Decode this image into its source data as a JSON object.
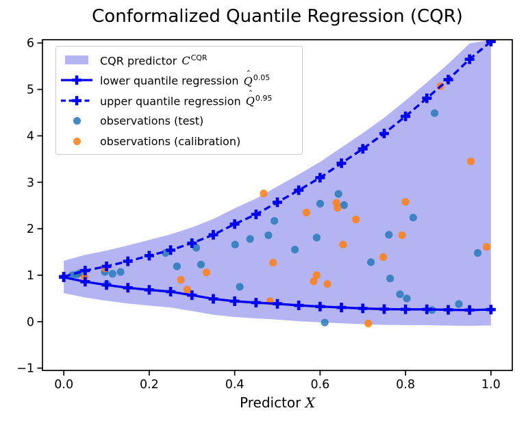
{
  "figure": {
    "title": "Conformalized Quantile Regression (CQR)",
    "xlabel_text": "Predictor ",
    "xlabel_var": "X"
  },
  "colors": {
    "curve_blue": "#0000ee",
    "band": "#b4b4f2",
    "test_dot": "#1f77b4",
    "calibration_dot": "#ff7f0e",
    "spine": "#000000",
    "legend_border": "#cccccc"
  },
  "chart_data": {
    "type": "line+scatter+band",
    "title": "Conformalized Quantile Regression (CQR)",
    "xlabel": "Predictor X",
    "ylabel": "",
    "xlim": [
      -0.05,
      1.05
    ],
    "ylim": [
      -1.05,
      6.07
    ],
    "grid": false,
    "legend_position": "upper left",
    "x_ticks": {
      "values": [
        0.0,
        0.2,
        0.4,
        0.6,
        0.8,
        1.0
      ],
      "labels": [
        "0.0",
        "0.2",
        "0.4",
        "0.6",
        "0.8",
        "1.0"
      ]
    },
    "y_ticks": {
      "values": [
        -1,
        0,
        1,
        2,
        3,
        4,
        5,
        6
      ],
      "labels": [
        "−1",
        "0",
        "1",
        "2",
        "3",
        "4",
        "5",
        "6"
      ]
    },
    "curve_x": [
      0.0,
      0.05,
      0.1,
      0.15,
      0.2,
      0.25,
      0.3,
      0.35,
      0.4,
      0.45,
      0.5,
      0.55,
      0.6,
      0.65,
      0.7,
      0.75,
      0.8,
      0.85,
      0.9,
      0.95,
      1.0
    ],
    "band": {
      "name": "CQR predictor C^CQR",
      "offset": 0.34
    },
    "series": [
      {
        "name": "lower quantile regression Q^0.05",
        "type": "line",
        "style": "solid",
        "values": [
          0.955,
          0.86,
          0.79,
          0.73,
          0.685,
          0.645,
          0.57,
          0.49,
          0.44,
          0.41,
          0.385,
          0.35,
          0.325,
          0.305,
          0.285,
          0.27,
          0.265,
          0.265,
          0.255,
          0.25,
          0.26
        ]
      },
      {
        "name": "upper quantile regression Q^0.95",
        "type": "line",
        "style": "dashed",
        "values": [
          0.97,
          1.1,
          1.19,
          1.3,
          1.42,
          1.54,
          1.69,
          1.87,
          2.1,
          2.31,
          2.57,
          2.83,
          3.1,
          3.41,
          3.72,
          4.05,
          4.42,
          4.81,
          5.21,
          5.65,
          6.03
        ]
      },
      {
        "name": "observations (test)",
        "type": "scatter",
        "points": [
          [
            0.02,
            1.0
          ],
          [
            0.031,
            1.02
          ],
          [
            0.039,
            1.05
          ],
          [
            0.096,
            1.07
          ],
          [
            0.101,
            0.81
          ],
          [
            0.114,
            1.03
          ],
          [
            0.133,
            1.07
          ],
          [
            0.238,
            1.48
          ],
          [
            0.265,
            1.19
          ],
          [
            0.31,
            1.59
          ],
          [
            0.321,
            1.23
          ],
          [
            0.401,
            1.66
          ],
          [
            0.412,
            0.75
          ],
          [
            0.436,
            1.78
          ],
          [
            0.479,
            1.86
          ],
          [
            0.493,
            2.17
          ],
          [
            0.541,
            1.55
          ],
          [
            0.592,
            1.81
          ],
          [
            0.6,
            2.54
          ],
          [
            0.611,
            -0.02
          ],
          [
            0.643,
            2.75
          ],
          [
            0.656,
            2.51
          ],
          [
            0.719,
            1.28
          ],
          [
            0.761,
            1.87
          ],
          [
            0.764,
            0.93
          ],
          [
            0.787,
            0.59
          ],
          [
            0.803,
            0.5
          ],
          [
            0.818,
            2.24
          ],
          [
            0.862,
            0.25
          ],
          [
            0.868,
            4.49
          ],
          [
            0.925,
            0.38
          ],
          [
            0.969,
            1.48
          ]
        ]
      },
      {
        "name": "observations (calibration)",
        "type": "scatter",
        "points": [
          [
            0.049,
            0.96
          ],
          [
            0.097,
            1.15
          ],
          [
            0.274,
            0.9
          ],
          [
            0.289,
            0.69
          ],
          [
            0.334,
            1.06
          ],
          [
            0.468,
            2.76
          ],
          [
            0.483,
            0.44
          ],
          [
            0.49,
            1.27
          ],
          [
            0.568,
            2.35
          ],
          [
            0.585,
            0.87
          ],
          [
            0.592,
            1.0
          ],
          [
            0.617,
            0.81
          ],
          [
            0.638,
            2.56
          ],
          [
            0.641,
            2.45
          ],
          [
            0.654,
            1.66
          ],
          [
            0.684,
            2.2
          ],
          [
            0.713,
            -0.04
          ],
          [
            0.748,
            1.39
          ],
          [
            0.792,
            1.86
          ],
          [
            0.8,
            2.58
          ],
          [
            0.882,
            5.07
          ],
          [
            0.953,
            3.45
          ],
          [
            0.99,
            1.61
          ]
        ]
      }
    ],
    "legend_entries": [
      {
        "swatch": "band",
        "text": "CQR predictor ",
        "math": "C",
        "hat": false,
        "sup": "CQR"
      },
      {
        "swatch": "line-solid",
        "text": "lower quantile regression ",
        "math": "Q",
        "hat": true,
        "sup": "0.05"
      },
      {
        "swatch": "line-dashed",
        "text": "upper quantile regression ",
        "math": "Q",
        "hat": true,
        "sup": "0.95"
      },
      {
        "swatch": "dot-test",
        "text": "observations (test)",
        "math": "",
        "hat": false,
        "sup": ""
      },
      {
        "swatch": "dot-cal",
        "text": "observations (calibration)",
        "math": "",
        "hat": false,
        "sup": ""
      }
    ]
  }
}
